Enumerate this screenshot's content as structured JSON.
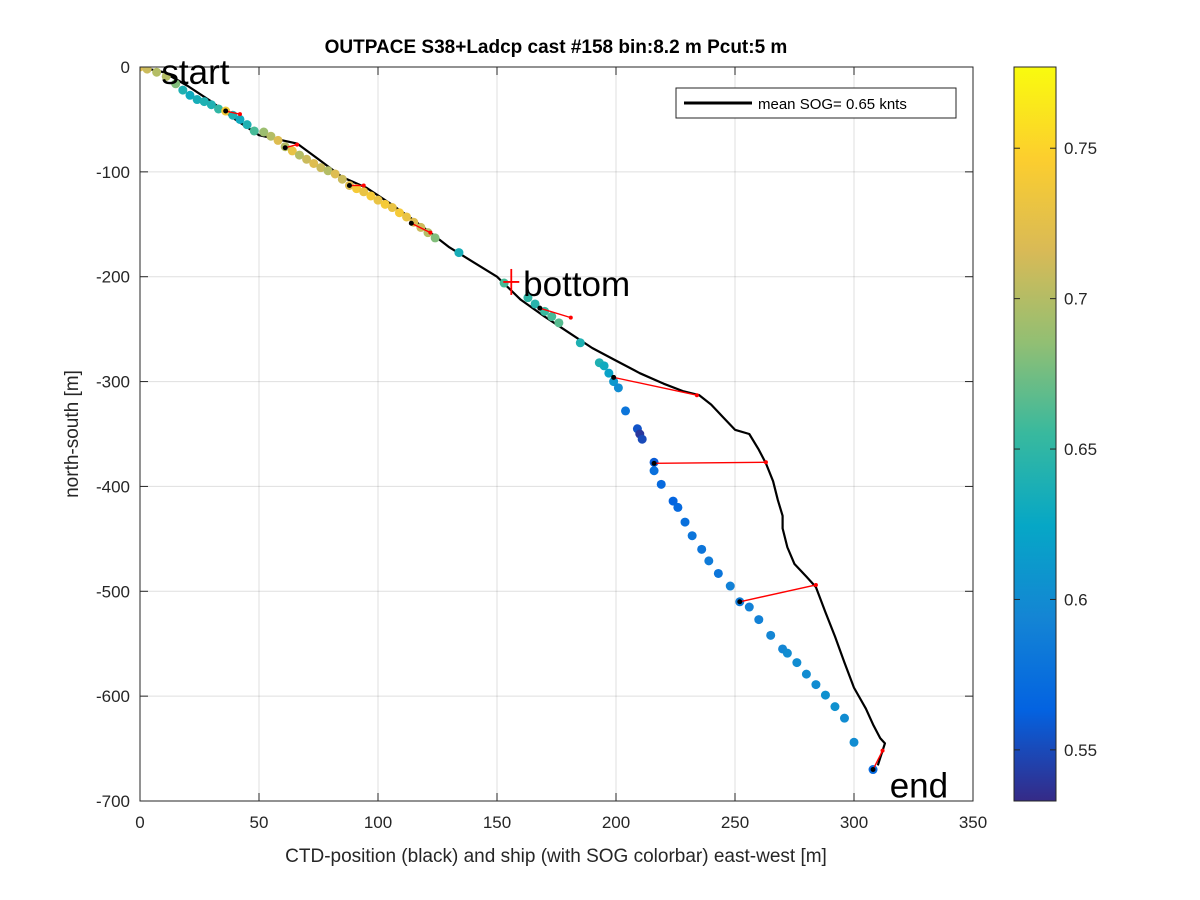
{
  "chart_data": {
    "type": "scatter",
    "title": "OUTPACE S38+Ladcp cast #158 bin:8.2 m  Pcut:5 m",
    "xlabel": "CTD-position (black) and ship (with SOG colorbar) east-west [m]",
    "ylabel": "north-south [m]",
    "xlim": [
      0,
      350
    ],
    "ylim": [
      -700,
      0
    ],
    "xticks": [
      0,
      50,
      100,
      150,
      200,
      250,
      300,
      350
    ],
    "yticks": [
      0,
      -100,
      -200,
      -300,
      -400,
      -500,
      -600,
      -700
    ],
    "grid": true,
    "legend": {
      "label": "mean SOG=  0.65 knts",
      "placement": "top-right"
    },
    "colorbar": {
      "label": "",
      "range": [
        0.533,
        0.777
      ],
      "ticks": [
        0.55,
        0.6,
        0.65,
        0.7,
        0.75
      ],
      "colormap": "parula"
    },
    "ctd_track": {
      "name": "CTD",
      "color": "#000000",
      "x": [
        0,
        10,
        20,
        30,
        40,
        50,
        60,
        66,
        75,
        85,
        95,
        105,
        115,
        122,
        130,
        140,
        150,
        160,
        170,
        180,
        190,
        200,
        210,
        220,
        228,
        235,
        240,
        245,
        250,
        256,
        260,
        263,
        266,
        268,
        270,
        270,
        272,
        275,
        280,
        284,
        288,
        292,
        296,
        300,
        305,
        308,
        311,
        313,
        312,
        310
      ],
      "y": [
        0,
        -5,
        -18,
        -33,
        -50,
        -65,
        -70,
        -73,
        -88,
        -105,
        -115,
        -130,
        -146,
        -158,
        -172,
        -186,
        -200,
        -222,
        -238,
        -253,
        -268,
        -280,
        -292,
        -302,
        -309,
        -313,
        -322,
        -334,
        -346,
        -350,
        -365,
        -378,
        -395,
        -413,
        -428,
        -440,
        -458,
        -474,
        -486,
        -496,
        -520,
        -543,
        -568,
        -592,
        -612,
        -627,
        -640,
        -645,
        -652,
        -666
      ]
    },
    "ship_track": {
      "name": "ship",
      "points": [
        {
          "x": 0,
          "y": 0,
          "sog": 0.72
        },
        {
          "x": 3,
          "y": -2,
          "sog": 0.71
        },
        {
          "x": 7,
          "y": -5,
          "sog": 0.7
        },
        {
          "x": 11,
          "y": -9,
          "sog": 0.7
        },
        {
          "x": 15,
          "y": -16,
          "sog": 0.68
        },
        {
          "x": 18,
          "y": -22,
          "sog": 0.64
        },
        {
          "x": 21,
          "y": -27,
          "sog": 0.63
        },
        {
          "x": 24,
          "y": -31,
          "sog": 0.635
        },
        {
          "x": 27,
          "y": -33,
          "sog": 0.64
        },
        {
          "x": 30,
          "y": -36,
          "sog": 0.64
        },
        {
          "x": 33,
          "y": -40,
          "sog": 0.65
        },
        {
          "x": 36,
          "y": -42,
          "sog": 0.74
        },
        {
          "x": 39,
          "y": -46,
          "sog": 0.64
        },
        {
          "x": 42,
          "y": -50,
          "sog": 0.63
        },
        {
          "x": 45,
          "y": -55,
          "sog": 0.64
        },
        {
          "x": 48,
          "y": -61,
          "sog": 0.66
        },
        {
          "x": 52,
          "y": -62,
          "sog": 0.69
        },
        {
          "x": 55,
          "y": -66,
          "sog": 0.7
        },
        {
          "x": 58,
          "y": -70,
          "sog": 0.72
        },
        {
          "x": 61,
          "y": -76,
          "sog": 0.7
        },
        {
          "x": 64,
          "y": -80,
          "sog": 0.73
        },
        {
          "x": 67,
          "y": -84,
          "sog": 0.7
        },
        {
          "x": 70,
          "y": -88,
          "sog": 0.71
        },
        {
          "x": 73,
          "y": -92,
          "sog": 0.72
        },
        {
          "x": 76,
          "y": -96,
          "sog": 0.71
        },
        {
          "x": 79,
          "y": -99,
          "sog": 0.7
        },
        {
          "x": 82,
          "y": -102,
          "sog": 0.72
        },
        {
          "x": 85,
          "y": -107,
          "sog": 0.71
        },
        {
          "x": 88,
          "y": -113,
          "sog": 0.72
        },
        {
          "x": 91,
          "y": -116,
          "sog": 0.74
        },
        {
          "x": 94,
          "y": -119,
          "sog": 0.73
        },
        {
          "x": 97,
          "y": -123,
          "sog": 0.74
        },
        {
          "x": 100,
          "y": -127,
          "sog": 0.73
        },
        {
          "x": 103,
          "y": -131,
          "sog": 0.74
        },
        {
          "x": 106,
          "y": -134,
          "sog": 0.73
        },
        {
          "x": 109,
          "y": -139,
          "sog": 0.74
        },
        {
          "x": 112,
          "y": -143,
          "sog": 0.73
        },
        {
          "x": 115,
          "y": -148,
          "sog": 0.72
        },
        {
          "x": 118,
          "y": -153,
          "sog": 0.71
        },
        {
          "x": 121,
          "y": -158,
          "sog": 0.7
        },
        {
          "x": 124,
          "y": -163,
          "sog": 0.68
        },
        {
          "x": 134,
          "y": -177,
          "sog": 0.635
        },
        {
          "x": 153,
          "y": -206,
          "sog": 0.66
        },
        {
          "x": 163,
          "y": -220,
          "sog": 0.65
        },
        {
          "x": 166,
          "y": -226,
          "sog": 0.645
        },
        {
          "x": 170,
          "y": -233,
          "sog": 0.655
        },
        {
          "x": 173,
          "y": -238,
          "sog": 0.66
        },
        {
          "x": 176,
          "y": -244,
          "sog": 0.665
        },
        {
          "x": 185,
          "y": -263,
          "sog": 0.64
        },
        {
          "x": 193,
          "y": -282,
          "sog": 0.64
        },
        {
          "x": 195,
          "y": -285,
          "sog": 0.63
        },
        {
          "x": 197,
          "y": -292,
          "sog": 0.62
        },
        {
          "x": 199,
          "y": -300,
          "sog": 0.61
        },
        {
          "x": 201,
          "y": -306,
          "sog": 0.6
        },
        {
          "x": 204,
          "y": -328,
          "sog": 0.58
        },
        {
          "x": 209,
          "y": -345,
          "sog": 0.555
        },
        {
          "x": 210,
          "y": -350,
          "sog": 0.54
        },
        {
          "x": 211,
          "y": -355,
          "sog": 0.55
        },
        {
          "x": 216,
          "y": -377,
          "sog": 0.56
        },
        {
          "x": 216,
          "y": -385,
          "sog": 0.575
        },
        {
          "x": 219,
          "y": -398,
          "sog": 0.57
        },
        {
          "x": 224,
          "y": -414,
          "sog": 0.565
        },
        {
          "x": 226,
          "y": -420,
          "sog": 0.57
        },
        {
          "x": 229,
          "y": -434,
          "sog": 0.575
        },
        {
          "x": 232,
          "y": -447,
          "sog": 0.58
        },
        {
          "x": 236,
          "y": -460,
          "sog": 0.58
        },
        {
          "x": 239,
          "y": -471,
          "sog": 0.585
        },
        {
          "x": 243,
          "y": -483,
          "sog": 0.58
        },
        {
          "x": 248,
          "y": -495,
          "sog": 0.59
        },
        {
          "x": 252,
          "y": -510,
          "sog": 0.585
        },
        {
          "x": 256,
          "y": -515,
          "sog": 0.59
        },
        {
          "x": 260,
          "y": -527,
          "sog": 0.59
        },
        {
          "x": 265,
          "y": -542,
          "sog": 0.595
        },
        {
          "x": 270,
          "y": -555,
          "sog": 0.595
        },
        {
          "x": 272,
          "y": -559,
          "sog": 0.6
        },
        {
          "x": 276,
          "y": -568,
          "sog": 0.6
        },
        {
          "x": 280,
          "y": -579,
          "sog": 0.6
        },
        {
          "x": 284,
          "y": -589,
          "sog": 0.6
        },
        {
          "x": 288,
          "y": -599,
          "sog": 0.605
        },
        {
          "x": 292,
          "y": -610,
          "sog": 0.605
        },
        {
          "x": 296,
          "y": -621,
          "sog": 0.6
        },
        {
          "x": 300,
          "y": -644,
          "sog": 0.6
        },
        {
          "x": 308,
          "y": -670,
          "sog": 0.57
        }
      ]
    },
    "connectors": [
      {
        "ship": [
          36,
          -42
        ],
        "ctd": [
          42,
          -45
        ]
      },
      {
        "ship": [
          61,
          -77
        ],
        "ctd": [
          66,
          -74
        ]
      },
      {
        "ship": [
          88,
          -113
        ],
        "ctd": [
          94,
          -113
        ]
      },
      {
        "ship": [
          114,
          -149
        ],
        "ctd": [
          122,
          -158
        ]
      },
      {
        "ship": [
          168,
          -230
        ],
        "ctd": [
          181,
          -239
        ]
      },
      {
        "ship": [
          199,
          -296
        ],
        "ctd": [
          234,
          -313
        ]
      },
      {
        "ship": [
          216,
          -378
        ],
        "ctd": [
          263,
          -377
        ]
      },
      {
        "ship": [
          252,
          -510
        ],
        "ctd": [
          284,
          -494
        ]
      },
      {
        "ship": [
          308,
          -670
        ],
        "ctd": [
          312,
          -652
        ]
      }
    ],
    "annotations": [
      {
        "text": "start",
        "x": 9,
        "y": -5
      },
      {
        "text": "bottom",
        "x": 161,
        "y": -207
      },
      {
        "text": "end",
        "x": 315,
        "y": -685
      }
    ],
    "bottom_marker": {
      "x": 156,
      "y": -205,
      "color": "#ff0000"
    }
  }
}
